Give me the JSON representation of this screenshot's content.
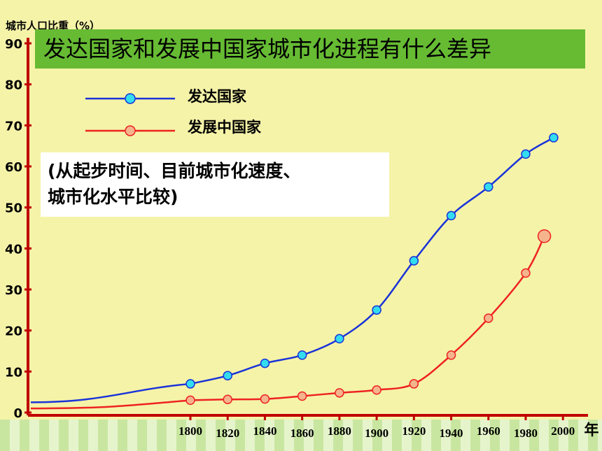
{
  "chart_data": {
    "type": "line",
    "title": "发达国家和发展中国家城市化进程有什么差异",
    "ylabel": "城市人口比重（%）",
    "xlabel": "年",
    "ylim": [
      0,
      90
    ],
    "yticks": [
      "0",
      "10",
      "20",
      "30",
      "40",
      "50",
      "60",
      "70",
      "80",
      "90"
    ],
    "xticks": [
      "1800",
      "1820",
      "1840",
      "1860",
      "1880",
      "1900",
      "1920",
      "1940",
      "1960",
      "1980",
      "2000"
    ],
    "legend": "top-left",
    "series": [
      {
        "name": "发达国家",
        "color": "#1a33d9",
        "marker_color": "#33ddee",
        "x": [
          1800,
          1820,
          1840,
          1860,
          1880,
          1900,
          1920,
          1940,
          1960,
          1980,
          1995
        ],
        "y": [
          7,
          9,
          12,
          14,
          18,
          25,
          37,
          48,
          55,
          63,
          67
        ]
      },
      {
        "name": "发展中国家",
        "color": "#ee2222",
        "marker_color": "#f4b48c",
        "x": [
          1800,
          1820,
          1840,
          1860,
          1880,
          1900,
          1920,
          1940,
          1960,
          1980,
          1990
        ],
        "y": [
          3,
          3.2,
          3.3,
          4,
          4.8,
          5.5,
          7,
          14,
          23,
          34,
          43
        ]
      }
    ],
    "annotation_lines": [
      "(从起步时间、目前城市化速度、",
      "城市化水平比较)"
    ]
  }
}
